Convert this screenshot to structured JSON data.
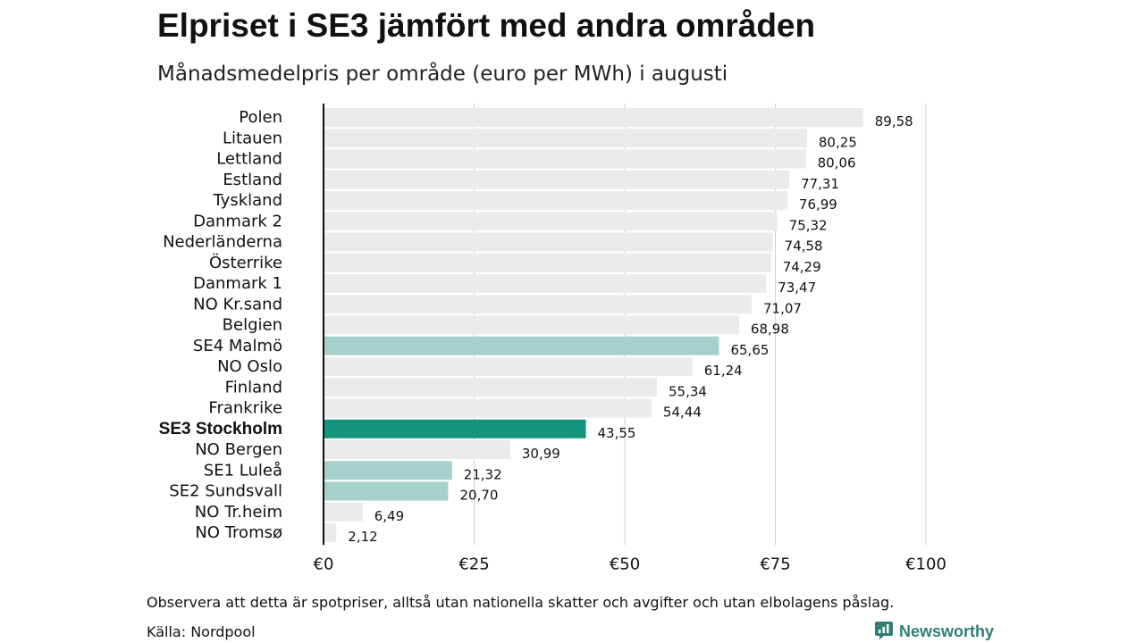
{
  "header": {
    "title": "Elpriset i SE3 jämfört med andra områden",
    "subtitle": "Månadsmedelpris per område (euro per MWh) i augusti"
  },
  "footer": {
    "note": "Observera att detta är spotpriser, alltså utan nationella skatter och avgifter och utan elbolagens påslag.",
    "source": "Källa: Nordpool",
    "brand": "Newsworthy"
  },
  "colors": {
    "default_bar": "#ebebeb",
    "swedish_area_bar": "#a6d1cb",
    "highlight_bar": "#14937f",
    "grid": "#d0d0d0",
    "baseline": "#111111",
    "brand": "#2f7f78"
  },
  "chart_data": {
    "type": "bar",
    "orientation": "horizontal",
    "title": "Elpriset i SE3 jämfört med andra områden",
    "subtitle": "Månadsmedelpris per område (euro per MWh) i augusti",
    "xlim": [
      0,
      100
    ],
    "x_ticks": [
      0,
      25,
      50,
      75,
      100
    ],
    "x_tick_labels": [
      "€0",
      "€25",
      "€50",
      "€75",
      "€100"
    ],
    "grid": true,
    "categories": [
      "Polen",
      "Litauen",
      "Lettland",
      "Estland",
      "Tyskland",
      "Danmark 2",
      "Nederländerna",
      "Österrike",
      "Danmark 1",
      "NO Kr.sand",
      "Belgien",
      "SE4 Malmö",
      "NO Oslo",
      "Finland",
      "Frankrike",
      "SE3 Stockholm",
      "NO Bergen",
      "SE1 Luleå",
      "SE2 Sundsvall",
      "NO Tr.heim",
      "NO Tromsø"
    ],
    "values": [
      89.58,
      80.25,
      80.06,
      77.31,
      76.99,
      75.32,
      74.58,
      74.29,
      73.47,
      71.07,
      68.98,
      65.65,
      61.24,
      55.34,
      54.44,
      43.55,
      30.99,
      21.32,
      20.7,
      6.49,
      2.12
    ],
    "value_labels": [
      "89,58",
      "80,25",
      "80,06",
      "77,31",
      "76,99",
      "75,32",
      "74,58",
      "74,29",
      "73,47",
      "71,07",
      "68,98",
      "65,65",
      "61,24",
      "55,34",
      "54,44",
      "43,55",
      "30,99",
      "21,32",
      "20,70",
      "6,49",
      "2,12"
    ],
    "bar_style": [
      "default",
      "default",
      "default",
      "default",
      "default",
      "default",
      "default",
      "default",
      "default",
      "default",
      "default",
      "swedish_area",
      "default",
      "default",
      "default",
      "highlight",
      "default",
      "swedish_area",
      "swedish_area",
      "default",
      "default"
    ],
    "bold_categories": [
      "SE3 Stockholm"
    ]
  }
}
